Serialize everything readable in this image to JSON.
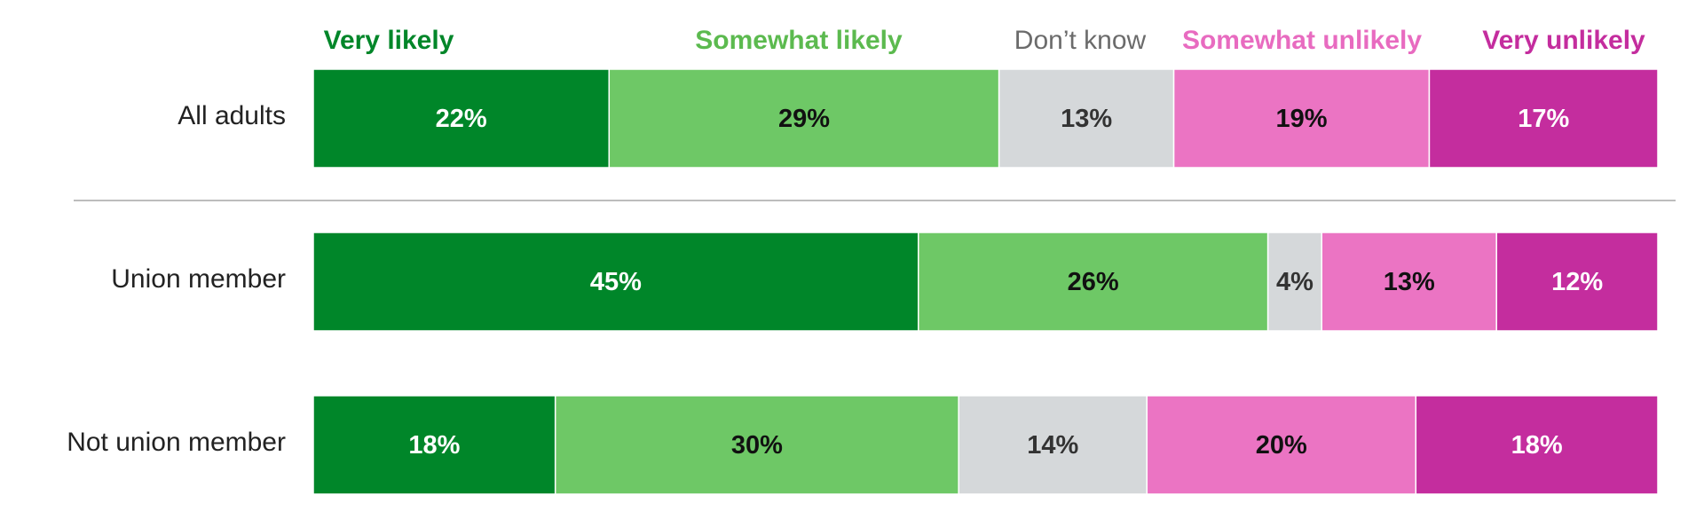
{
  "chart_data": {
    "type": "bar",
    "orientation": "horizontal",
    "stacked": true,
    "normalized_to": 100,
    "categories": [
      "All adults",
      "Union member",
      "Not union member"
    ],
    "series": [
      {
        "name": "Very likely",
        "values": [
          22,
          45,
          18
        ],
        "color": "#008629",
        "legend_weight": "bold",
        "label_color": "#ffffff"
      },
      {
        "name": "Somewhat likely",
        "values": [
          29,
          26,
          30
        ],
        "color": "#6ec866",
        "legend_weight": "bold",
        "label_color": "#111111"
      },
      {
        "name": "Don’t know",
        "values": [
          13,
          4,
          14
        ],
        "color": "#d5d8da",
        "legend_weight": "normal",
        "label_color": "#333333"
      },
      {
        "name": "Somewhat unlikely",
        "values": [
          19,
          13,
          20
        ],
        "color": "#eb74c3",
        "legend_weight": "bold",
        "label_color": "#111111"
      },
      {
        "name": "Very unlikely",
        "values": [
          17,
          12,
          18
        ],
        "color": "#c42d9e",
        "legend_weight": "bold",
        "label_color": "#ffffff"
      }
    ],
    "value_suffix": "%",
    "legend_placement": "top",
    "legend_colors": [
      "#008629",
      "#5cba4f",
      "#6b6b6b",
      "#e86bc0",
      "#c42d9e"
    ],
    "separator_after_first_row": true,
    "grid": false
  }
}
